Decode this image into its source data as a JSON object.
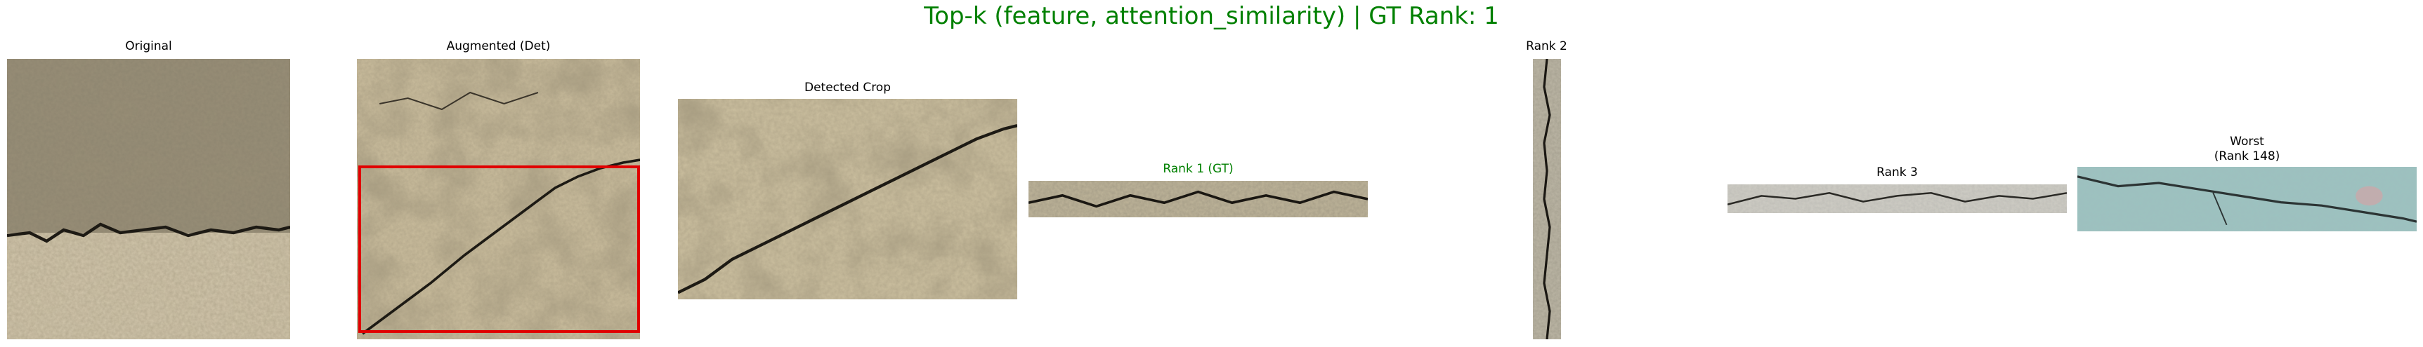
{
  "figure": {
    "title": "Top-k (feature, attention_similarity) | GT Rank: 1"
  },
  "panels": [
    {
      "id": "original",
      "caption": "Original"
    },
    {
      "id": "augmented",
      "caption": "Augmented (Det)"
    },
    {
      "id": "detected",
      "caption": "Detected Crop"
    },
    {
      "id": "rank1",
      "caption": "Rank 1 (GT)"
    },
    {
      "id": "rank2",
      "caption": "Rank 2"
    },
    {
      "id": "rank3",
      "caption": "Rank 3"
    },
    {
      "id": "worst",
      "caption": "Worst\n(Rank 148)"
    }
  ],
  "colors": {
    "title": "#008000",
    "gt_caption": "#008000",
    "detection_box": "#e00000"
  }
}
